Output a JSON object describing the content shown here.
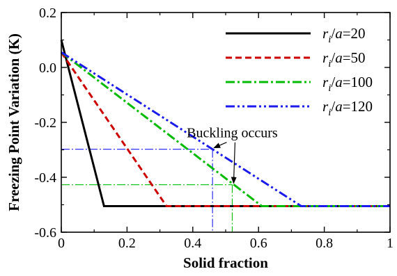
{
  "chart_data": {
    "type": "line",
    "xlabel": "Solid fraction",
    "ylabel": "Freezing Point Variation (K)",
    "xlim": [
      0,
      1
    ],
    "ylim": [
      -0.6,
      0.2
    ],
    "xticks": [
      0,
      0.2,
      0.4,
      0.6,
      0.8,
      1
    ],
    "xtick_labels": [
      "0",
      "0.2",
      "0.4",
      "0.6",
      "0.8",
      "1"
    ],
    "yticks": [
      -0.6,
      -0.4,
      -0.2,
      0.0,
      0.2
    ],
    "ytick_labels": [
      "-0.6",
      "-0.4",
      "-0.2",
      "0.0",
      "0.2"
    ],
    "grid": false,
    "legend_placement": "top-right",
    "series": [
      {
        "name": "ri/a=20",
        "name_parts": [
          "r",
          "i",
          "/",
          "a",
          "=20"
        ],
        "color": "#000000",
        "dash": "solid",
        "x": [
          0,
          0.13,
          1.0
        ],
        "y": [
          0.1,
          -0.505,
          -0.505
        ]
      },
      {
        "name": "ri/a=50",
        "name_parts": [
          "r",
          "i",
          "/",
          "a",
          "=50"
        ],
        "color": "#cc0000",
        "dash": "dash",
        "x": [
          0,
          0.32,
          1.0
        ],
        "y": [
          0.055,
          -0.505,
          -0.505
        ]
      },
      {
        "name": "ri/a=100",
        "name_parts": [
          "r",
          "i",
          "/",
          "a",
          "=100"
        ],
        "color": "#00bb00",
        "dash": "dashdot",
        "x": [
          0,
          0.61,
          1.0
        ],
        "y": [
          0.055,
          -0.505,
          -0.505
        ]
      },
      {
        "name": "ri/a=120",
        "name_parts": [
          "r",
          "i",
          "/",
          "a",
          "=120"
        ],
        "color": "#1a1aee",
        "dash": "dashdotdot",
        "x": [
          0,
          0.73,
          1.0
        ],
        "y": [
          0.055,
          -0.505,
          -0.505
        ]
      }
    ],
    "annotations": {
      "text": "Buckling occurs",
      "text_pos": [
        0.52,
        -0.255
      ],
      "arrow_targets": [
        [
          0.46,
          -0.298
        ],
        [
          0.52,
          -0.427
        ]
      ],
      "guides": [
        {
          "x": 0.46,
          "y": -0.298,
          "color": "#1a1aee"
        },
        {
          "x": 0.52,
          "y": -0.427,
          "color": "#00bb00"
        }
      ]
    }
  }
}
